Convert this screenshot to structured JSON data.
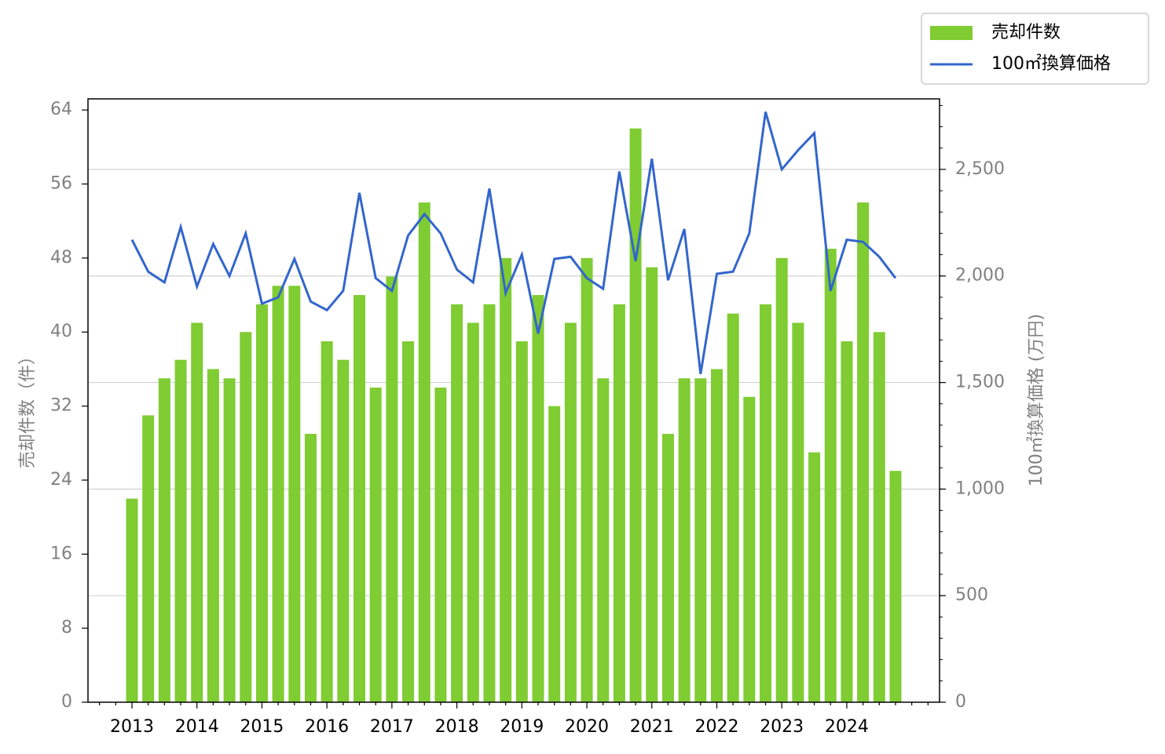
{
  "chart_data": {
    "type": "bar_line",
    "categories": [
      "2013",
      null,
      null,
      null,
      "2014",
      null,
      null,
      null,
      "2015",
      null,
      null,
      null,
      "2016",
      null,
      null,
      null,
      "2017",
      null,
      null,
      null,
      "2018",
      null,
      null,
      null,
      "2019",
      null,
      null,
      null,
      "2020",
      null,
      null,
      null,
      "2021",
      null,
      null,
      null,
      "2022",
      null,
      null,
      null,
      "2023",
      null,
      null,
      null,
      "2024",
      null,
      null,
      null
    ],
    "series": [
      {
        "name": "売却件数",
        "type": "bar",
        "axis": "y",
        "color": "#7fcc33",
        "values": [
          22,
          31,
          35,
          37,
          41,
          36,
          35,
          40,
          43,
          45,
          45,
          29,
          39,
          37,
          44,
          34,
          46,
          39,
          54,
          34,
          43,
          41,
          43,
          48,
          39,
          44,
          32,
          41,
          48,
          35,
          43,
          62,
          47,
          29,
          35,
          35,
          36,
          42,
          33,
          43,
          48,
          41,
          27,
          49,
          39,
          54,
          40,
          25
        ]
      },
      {
        "name": "100㎡換算価格",
        "type": "line",
        "axis": "y2",
        "color": "#3366cc",
        "values": [
          2170,
          2020,
          1970,
          2230,
          1950,
          2150,
          2000,
          2200,
          1870,
          1900,
          2080,
          1880,
          1840,
          1930,
          2390,
          1990,
          1930,
          2190,
          2290,
          2200,
          2030,
          1970,
          2410,
          1920,
          2100,
          1730,
          2080,
          2090,
          1990,
          1940,
          2490,
          2070,
          2550,
          1980,
          2220,
          1540,
          2010,
          2020,
          2200,
          2770,
          2500,
          2590,
          2670,
          1930,
          2170,
          2160,
          2090,
          1990
        ]
      }
    ],
    "ylabel": "売却件数（件）",
    "y2label": "100㎡換算価格 (万円)",
    "ylim": [
      0,
      65.2
    ],
    "yticks": [
      0,
      8,
      16,
      24,
      32,
      40,
      48,
      56,
      64
    ],
    "y2lim": [
      0,
      2831
    ],
    "y2ticks": [
      0,
      500,
      {
        "value": 1000,
        "label": "1,000"
      },
      {
        "value": 1500,
        "label": "1,500"
      },
      {
        "value": 2000,
        "label": "2,000"
      },
      {
        "value": 2500,
        "label": "2,500"
      }
    ],
    "grid_axis": "y2",
    "legend": "upper right"
  }
}
